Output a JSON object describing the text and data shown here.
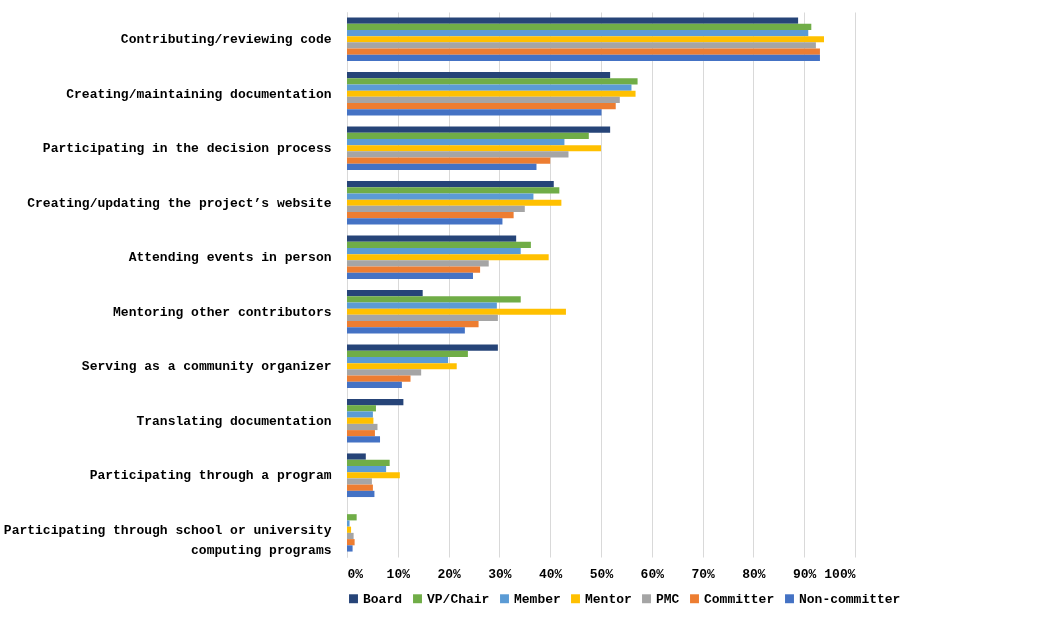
{
  "chart_data": {
    "type": "bar",
    "orientation": "horizontal",
    "categories": [
      "Contributing/reviewing code",
      "Creating/maintaining documentation",
      "Participating in the decision process",
      "Creating/updating the project’s website",
      "Attending events in person",
      "Mentoring other contributors",
      "Serving as a community organizer",
      "Translating documentation",
      "Participating through a program",
      "Participating through school or university\ncomputing programs"
    ],
    "series": [
      {
        "name": "Board",
        "color": "#264478",
        "values": [
          88.8,
          51.8,
          51.8,
          40.7,
          33.3,
          14.9,
          29.7,
          11.1,
          3.7,
          0
        ]
      },
      {
        "name": "VP/Chair",
        "color": "#70ad47",
        "values": [
          91.4,
          57.2,
          47.6,
          41.8,
          36.2,
          34.2,
          23.8,
          5.7,
          8.4,
          1.9
        ]
      },
      {
        "name": "Member",
        "color": "#5b9bd5",
        "values": [
          90.8,
          56.0,
          42.8,
          36.7,
          34.2,
          29.5,
          19.9,
          5.1,
          7.7,
          0.5
        ]
      },
      {
        "name": "Mentor",
        "color": "#ffc000",
        "values": [
          93.9,
          56.8,
          50.0,
          42.2,
          39.7,
          43.1,
          21.6,
          5.2,
          10.4,
          0.8
        ]
      },
      {
        "name": "PMC",
        "color": "#a5a5a5",
        "values": [
          92.3,
          53.7,
          43.6,
          35.0,
          27.9,
          29.7,
          14.6,
          6.0,
          4.9,
          1.3
        ]
      },
      {
        "name": "Committer",
        "color": "#ed7d31",
        "values": [
          93.1,
          52.9,
          40.0,
          32.8,
          26.2,
          25.9,
          12.5,
          5.5,
          5.1,
          1.5
        ]
      },
      {
        "name": "Non-committer",
        "color": "#4472c4",
        "values": [
          93.1,
          50.1,
          37.3,
          30.6,
          24.8,
          23.2,
          10.8,
          6.5,
          5.4,
          1.1
        ]
      }
    ],
    "xlim": [
      0,
      100
    ],
    "xticks": [
      {
        "value": 0,
        "label": "0%"
      },
      {
        "value": 10,
        "label": "10%"
      },
      {
        "value": 20,
        "label": "20%"
      },
      {
        "value": 30,
        "label": "30%"
      },
      {
        "value": 40,
        "label": "40%"
      },
      {
        "value": 50,
        "label": "50%"
      },
      {
        "value": 60,
        "label": "60%"
      },
      {
        "value": 70,
        "label": "70%"
      },
      {
        "value": 80,
        "label": "80%"
      },
      {
        "value": 90,
        "label": "90%"
      },
      {
        "value": 100,
        "label": "100%"
      }
    ],
    "grid": "x",
    "legend": "bottom"
  }
}
